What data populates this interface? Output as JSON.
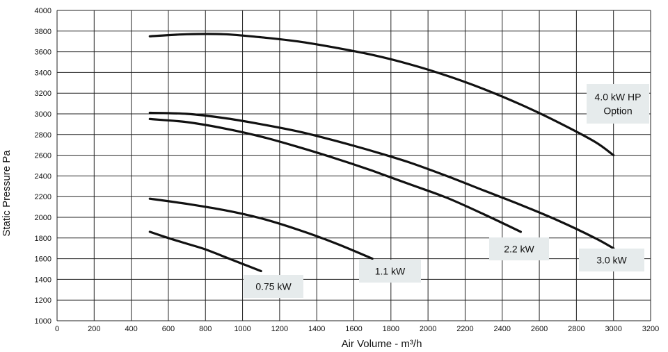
{
  "chart_data": {
    "type": "line",
    "xlabel": "Air Volume - m³/h",
    "ylabel": "Static Pressure Pa",
    "xlim": [
      0,
      3200
    ],
    "ylim": [
      1000,
      4000
    ],
    "grid": true,
    "x_ticks": [
      "0",
      "200",
      "400",
      "600",
      "800",
      "1000",
      "1200",
      "1400",
      "1600",
      "1800",
      "2000",
      "2200",
      "2400",
      "2600",
      "2800",
      "3000",
      "3200"
    ],
    "y_ticks": [
      "1000",
      "1200",
      "1400",
      "1600",
      "1800",
      "2000",
      "2200",
      "2400",
      "2600",
      "2800",
      "3000",
      "3200",
      "3400",
      "3600",
      "3800",
      "4000"
    ],
    "series": [
      {
        "name": "0.75 kW",
        "points": [
          [
            500,
            1860
          ],
          [
            600,
            1800
          ],
          [
            700,
            1745
          ],
          [
            800,
            1690
          ],
          [
            900,
            1620
          ],
          [
            1000,
            1550
          ],
          [
            1100,
            1480
          ]
        ]
      },
      {
        "name": "1.1 kW",
        "points": [
          [
            500,
            2180
          ],
          [
            700,
            2130
          ],
          [
            900,
            2070
          ],
          [
            1100,
            1990
          ],
          [
            1300,
            1880
          ],
          [
            1500,
            1750
          ],
          [
            1700,
            1600
          ]
        ]
      },
      {
        "name": "2.2 kW",
        "points": [
          [
            500,
            2950
          ],
          [
            700,
            2920
          ],
          [
            900,
            2860
          ],
          [
            1100,
            2780
          ],
          [
            1300,
            2680
          ],
          [
            1500,
            2570
          ],
          [
            1700,
            2450
          ],
          [
            1900,
            2320
          ],
          [
            2100,
            2190
          ],
          [
            2300,
            2030
          ],
          [
            2500,
            1860
          ]
        ]
      },
      {
        "name": "3.0 kW",
        "points": [
          [
            500,
            3010
          ],
          [
            700,
            3000
          ],
          [
            900,
            2960
          ],
          [
            1100,
            2900
          ],
          [
            1300,
            2830
          ],
          [
            1500,
            2740
          ],
          [
            1700,
            2640
          ],
          [
            1900,
            2530
          ],
          [
            2100,
            2400
          ],
          [
            2300,
            2260
          ],
          [
            2500,
            2120
          ],
          [
            2700,
            1970
          ],
          [
            2900,
            1800
          ],
          [
            3000,
            1700
          ]
        ]
      },
      {
        "name": "4.0 kW HP Option",
        "points": [
          [
            500,
            3750
          ],
          [
            700,
            3770
          ],
          [
            900,
            3770
          ],
          [
            1100,
            3740
          ],
          [
            1300,
            3700
          ],
          [
            1500,
            3640
          ],
          [
            1700,
            3570
          ],
          [
            1900,
            3480
          ],
          [
            2100,
            3370
          ],
          [
            2300,
            3240
          ],
          [
            2500,
            3090
          ],
          [
            2700,
            2920
          ],
          [
            2900,
            2730
          ],
          [
            3000,
            2600
          ]
        ]
      }
    ],
    "labels": [
      {
        "series": "0.75 kW",
        "lines": [
          "0.75 kW"
        ]
      },
      {
        "series": "1.1 kW",
        "lines": [
          "1.1 kW"
        ]
      },
      {
        "series": "2.2 kW",
        "lines": [
          "2.2 kW"
        ]
      },
      {
        "series": "3.0 kW",
        "lines": [
          "3.0 kW"
        ]
      },
      {
        "series": "4.0 kW HP Option",
        "lines": [
          "4.0 kW HP",
          "Option"
        ]
      }
    ]
  }
}
